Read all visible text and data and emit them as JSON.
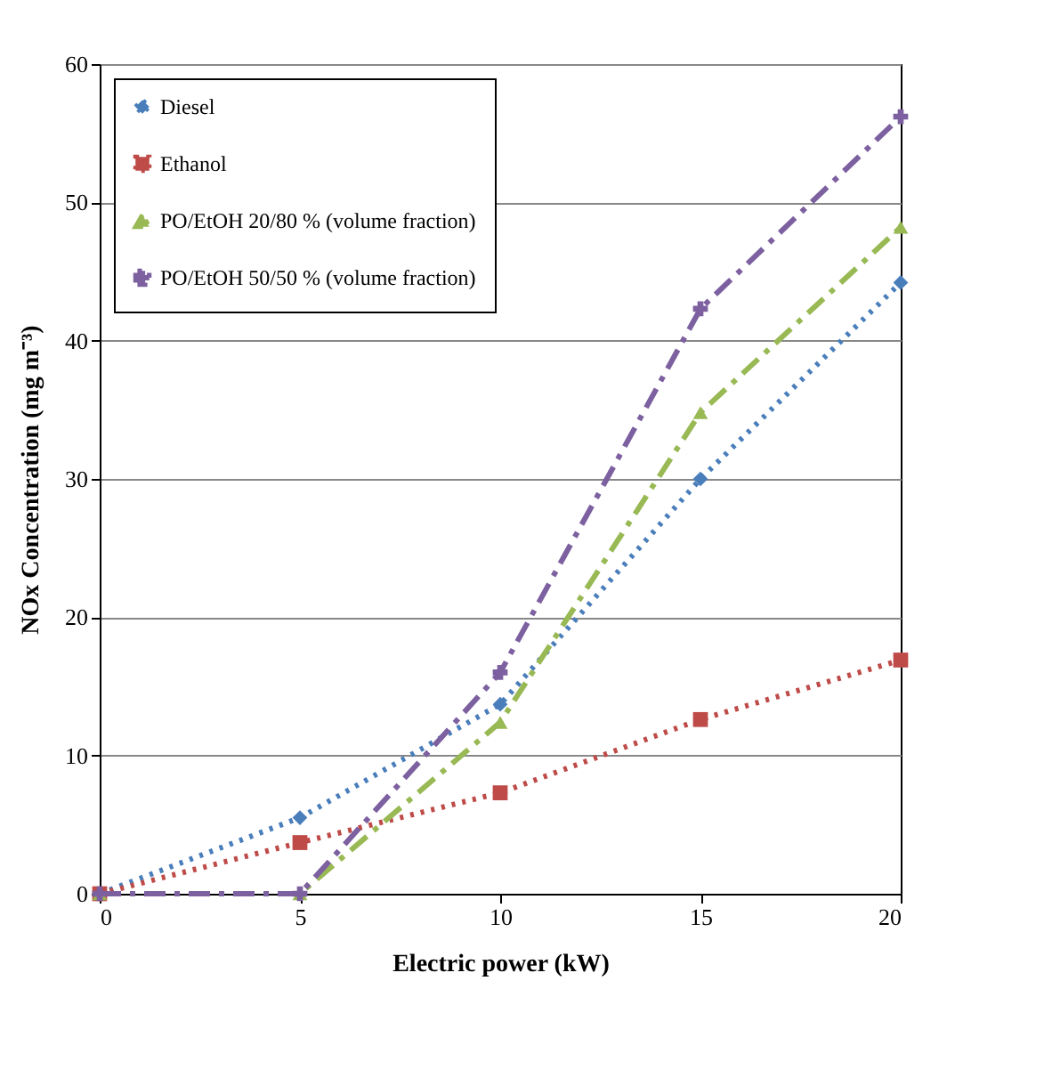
{
  "chart_data": {
    "type": "line",
    "xlabel": "Electric power (kW)",
    "ylabel": "NOx Concentration (mg m⁻³)",
    "x": [
      0,
      5,
      10,
      15,
      20
    ],
    "series": [
      {
        "name": "Diesel",
        "color": "#4a7ebb",
        "values": [
          0,
          5.5,
          13.7,
          30,
          44.2
        ],
        "marker": "diamond",
        "line_style": "dotted"
      },
      {
        "name": "Ethanol",
        "color": "#be4b48",
        "values": [
          0,
          3.7,
          7.3,
          12.6,
          16.9
        ],
        "marker": "square",
        "line_style": "dotted"
      },
      {
        "name": "PO/EtOH 20/80 % (volume fraction)",
        "color": "#98b954",
        "values": [
          0,
          0,
          12.4,
          34.8,
          48.2
        ],
        "marker": "triangle",
        "line_style": "dashed"
      },
      {
        "name": "PO/EtOH 50/50 % (volume fraction)",
        "color": "#7d60a0",
        "values": [
          0,
          0,
          16,
          42.3,
          56.2
        ],
        "marker": "cross",
        "line_style": "dashed"
      }
    ],
    "xlim": [
      0,
      20
    ],
    "xticks": [
      0,
      5,
      10,
      15,
      20
    ],
    "ylim": [
      0,
      60
    ],
    "yticks": [
      0,
      10,
      20,
      30,
      40,
      50,
      60
    ],
    "grid": "y",
    "legend": "top left"
  }
}
